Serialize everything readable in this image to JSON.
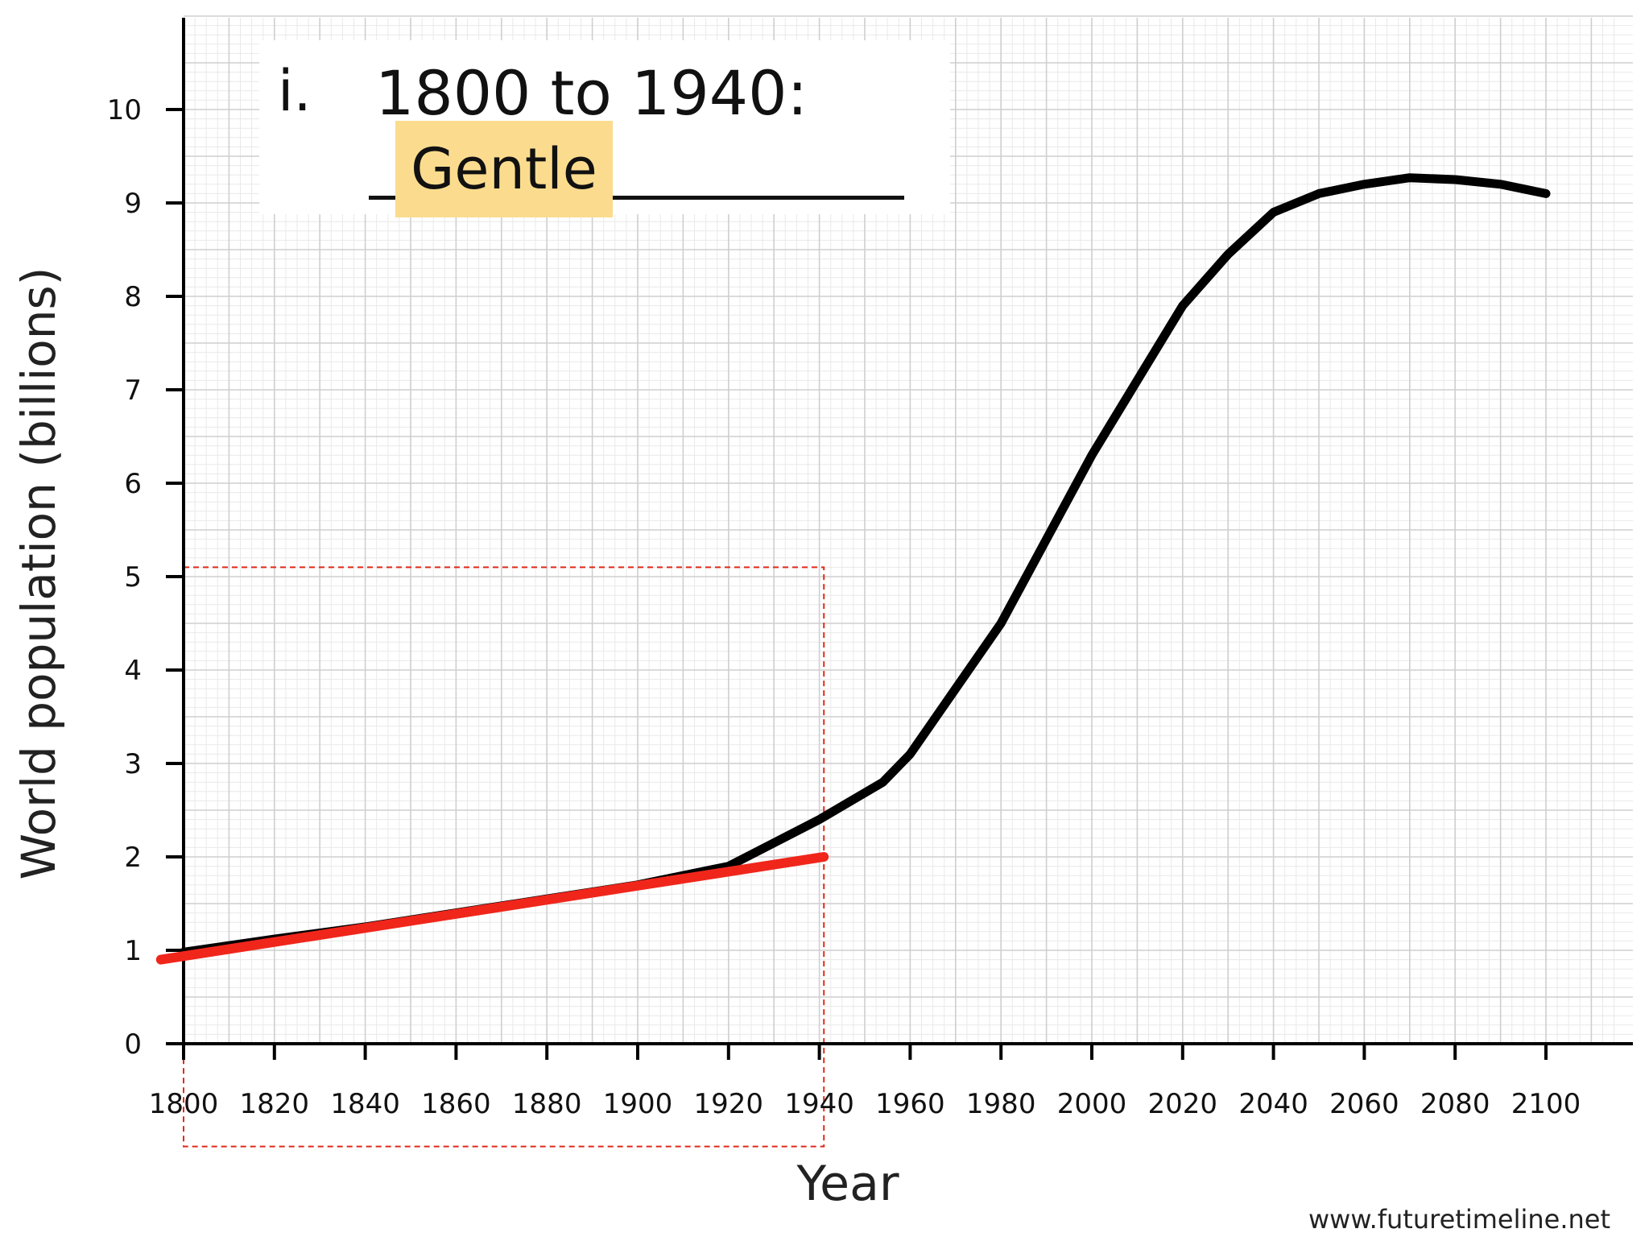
{
  "annotation": {
    "number": "i.",
    "title": "1800 to 1940:",
    "answer": "Gentle",
    "answer_color": "#fbdc8e"
  },
  "credit": "www.futuretimeline.net",
  "chart_data": {
    "type": "line",
    "xlabel": "Year",
    "ylabel": "World population (billions)",
    "xlim": [
      1800,
      2115
    ],
    "ylim": [
      0,
      11
    ],
    "x_ticks": [
      1800,
      1820,
      1840,
      1860,
      1880,
      1900,
      1920,
      1940,
      1960,
      1980,
      2000,
      2020,
      2040,
      2060,
      2080,
      2100
    ],
    "y_ticks": [
      0,
      1,
      2,
      3,
      4,
      5,
      6,
      7,
      8,
      9,
      10
    ],
    "grid": true,
    "series": [
      {
        "color": "#000000",
        "x": [
          1800,
          1820,
          1840,
          1860,
          1880,
          1900,
          1920,
          1930,
          1940,
          1947,
          1954,
          1960,
          1970,
          1980,
          1990,
          2000,
          2010,
          2020,
          2030,
          2040,
          2050,
          2060,
          2070,
          2080,
          2090,
          2100
        ],
        "y": [
          0.98,
          1.12,
          1.25,
          1.4,
          1.55,
          1.7,
          1.9,
          2.15,
          2.4,
          2.6,
          2.8,
          3.1,
          3.8,
          4.5,
          5.4,
          6.3,
          7.1,
          7.9,
          8.45,
          8.9,
          9.1,
          9.2,
          9.27,
          9.25,
          9.2,
          9.1
        ]
      },
      {
        "color": "#f0261b",
        "x": [
          1795,
          1941
        ],
        "y": [
          0.9,
          2.0
        ]
      }
    ],
    "highlight_region": {
      "x": [
        1800,
        1941
      ],
      "y": [
        -1.1,
        5.1
      ],
      "color": "#e02a1a",
      "style": "dashed"
    }
  }
}
